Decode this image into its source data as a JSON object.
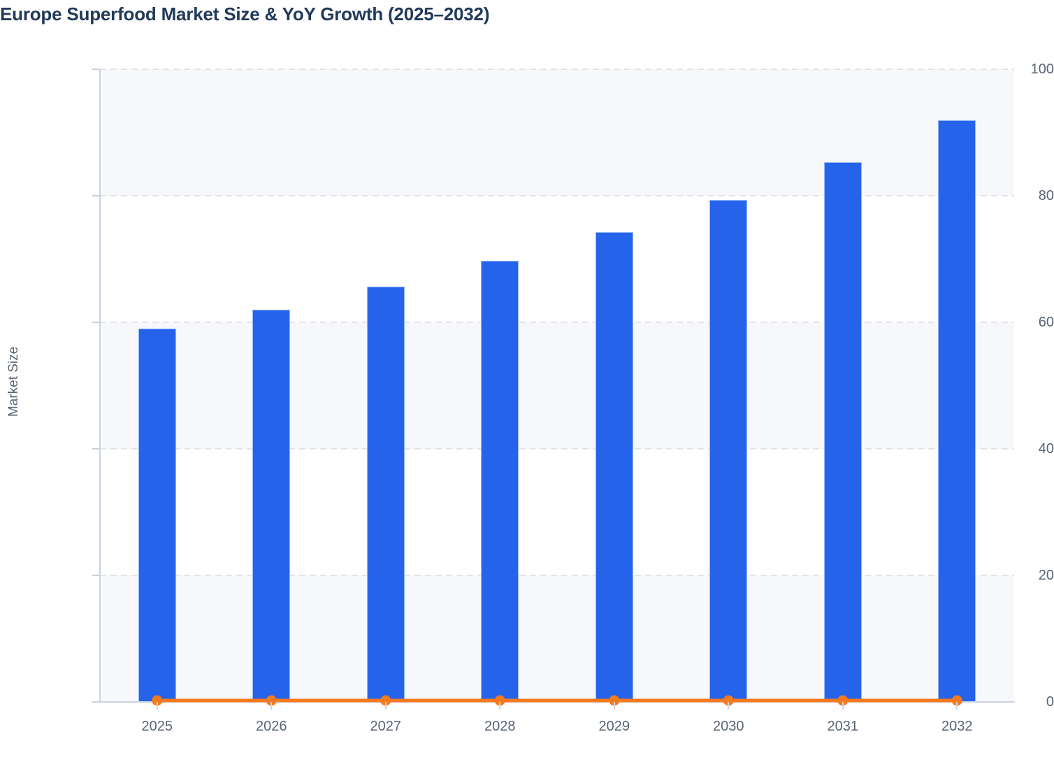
{
  "chart_data": {
    "type": "bar",
    "title": "Europe Superfood Market Size & YoY Growth (2025–2032)",
    "xlabel": "",
    "ylabel": "Market Size",
    "categories": [
      "2025",
      "2026",
      "2027",
      "2028",
      "2029",
      "2030",
      "2031",
      "2032"
    ],
    "series": [
      {
        "name": "Market Size",
        "type": "bar",
        "color": "#2563eb",
        "values": [
          59,
          62,
          65.6,
          69.7,
          74.3,
          79.3,
          85.3,
          91.9
        ]
      },
      {
        "name": "YoY Growth",
        "type": "line",
        "color": "#f5791d",
        "values": [
          0,
          0,
          0,
          0,
          0,
          0,
          0,
          0
        ],
        "note": "YoY growth line with round markers renders flat at ≈0 on the shared 0–100 axis"
      }
    ],
    "ylim": [
      0,
      100
    ],
    "yticks": [
      0,
      20,
      40,
      60,
      80,
      100
    ],
    "legend": "none",
    "grid": "dashed horizontal gridlines",
    "background_bands": "alternating light/white horizontal bands every 20 units",
    "colors": {
      "bar": "#2563eb",
      "line": "#f5791d",
      "title": "#21395a",
      "axis_labels": "#5a6474",
      "axis_line": "#c9d2e8",
      "gridline": "#e3e4e7",
      "band_light": "#f7f8fb",
      "band_white": "#ffffff"
    }
  }
}
